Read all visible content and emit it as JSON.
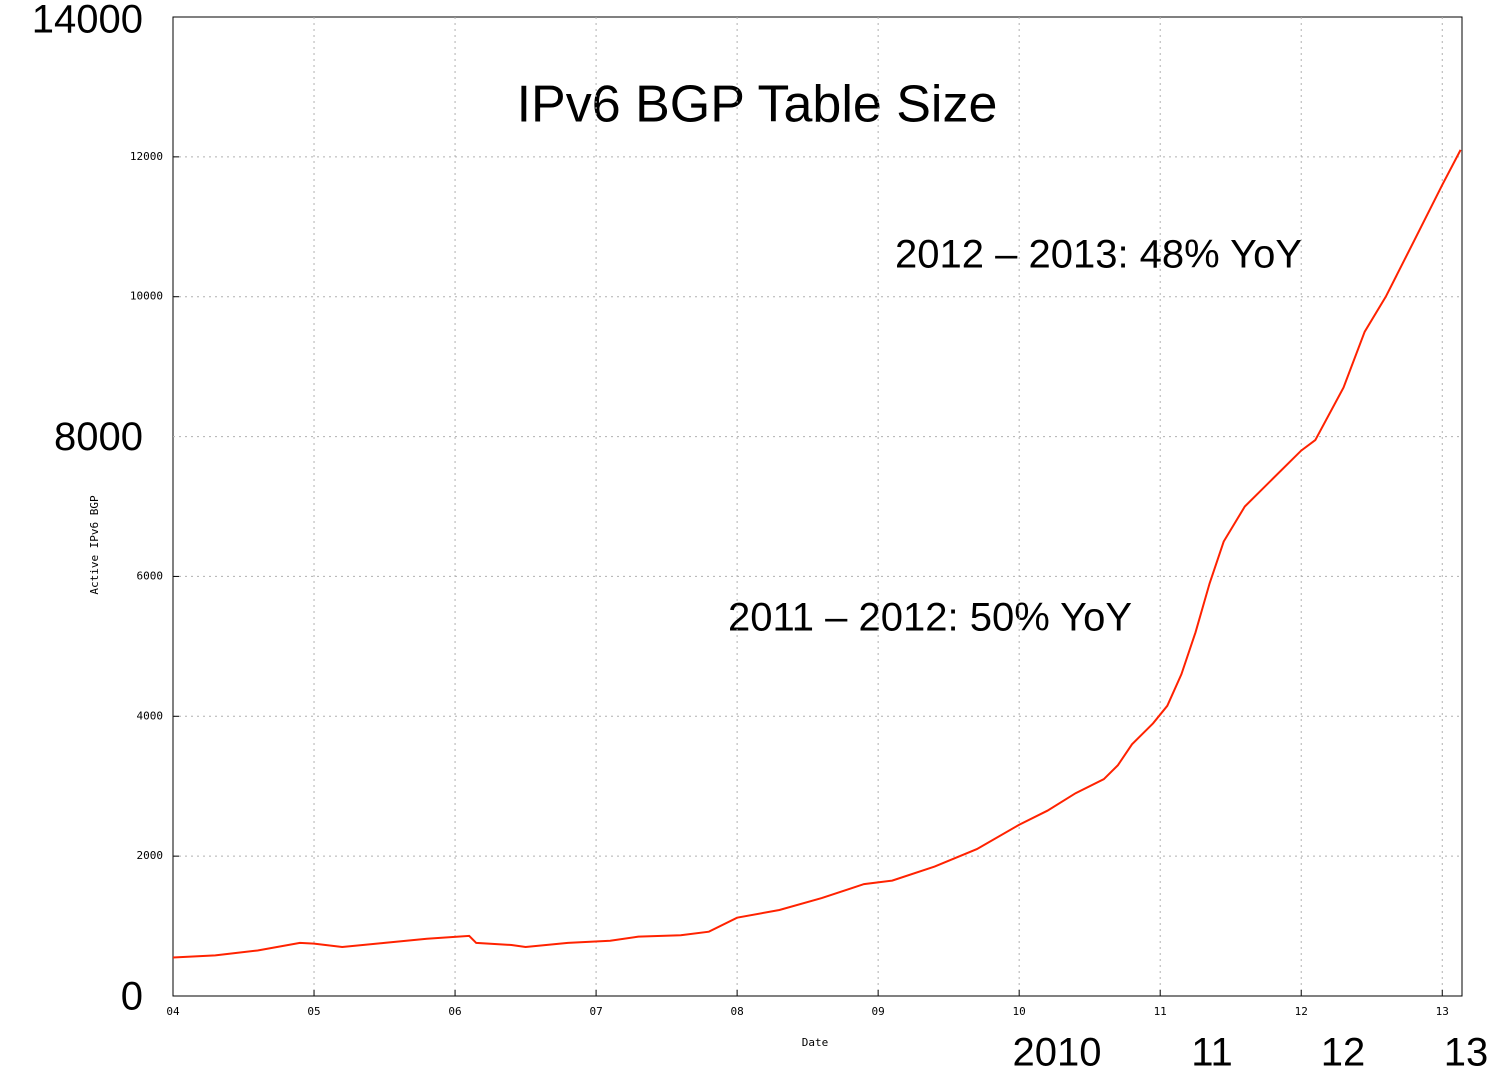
{
  "chart_data": {
    "type": "line",
    "title": "IPv6 BGP Table Size",
    "x_label": "Date",
    "y_label": "Active IPv6 BGP",
    "annotations": [
      "2012 – 2013: 48% YoY",
      "2011 – 2012: 50% YoY"
    ],
    "xlim": [
      2004,
      2013.14
    ],
    "ylim": [
      0,
      14000
    ],
    "xticks": [
      {
        "value": 2004,
        "label": "04"
      },
      {
        "value": 2005,
        "label": "05"
      },
      {
        "value": 2006,
        "label": "06"
      },
      {
        "value": 2007,
        "label": "07"
      },
      {
        "value": 2008,
        "label": "08"
      },
      {
        "value": 2009,
        "label": "09"
      },
      {
        "value": 2010,
        "label": "10"
      },
      {
        "value": 2011,
        "label": "11"
      },
      {
        "value": 2012,
        "label": "12"
      },
      {
        "value": 2013,
        "label": "13"
      }
    ],
    "yticks": [
      2000,
      4000,
      6000,
      10000,
      12000
    ],
    "large_yticks": [
      0,
      8000,
      14000
    ],
    "large_xlabels": [
      "2010",
      "11",
      "12",
      "13"
    ],
    "grid": true,
    "series": [
      {
        "color": "#ff2200",
        "x": [
          2004.0,
          2004.3,
          2004.6,
          2004.9,
          2005.0,
          2005.2,
          2005.5,
          2005.8,
          2006.1,
          2006.15,
          2006.4,
          2006.5,
          2006.8,
          2007.1,
          2007.3,
          2007.6,
          2007.8,
          2008.0,
          2008.3,
          2008.6,
          2008.9,
          2009.1,
          2009.4,
          2009.7,
          2010.0,
          2010.2,
          2010.4,
          2010.6,
          2010.7,
          2010.8,
          2010.95,
          2011.05,
          2011.15,
          2011.25,
          2011.35,
          2011.45,
          2011.6,
          2011.8,
          2012.0,
          2012.1,
          2012.3,
          2012.45,
          2012.6,
          2012.8,
          2013.0,
          2013.13
        ],
        "values": [
          550,
          580,
          650,
          760,
          750,
          700,
          760,
          820,
          860,
          760,
          730,
          700,
          760,
          790,
          850,
          870,
          920,
          1120,
          1230,
          1400,
          1600,
          1650,
          1850,
          2100,
          2450,
          2650,
          2900,
          3100,
          3300,
          3600,
          3900,
          4150,
          4600,
          5200,
          5900,
          6500,
          7000,
          7400,
          7800,
          7950,
          8700,
          9500,
          10000,
          10800,
          11600,
          12100
        ]
      }
    ]
  }
}
